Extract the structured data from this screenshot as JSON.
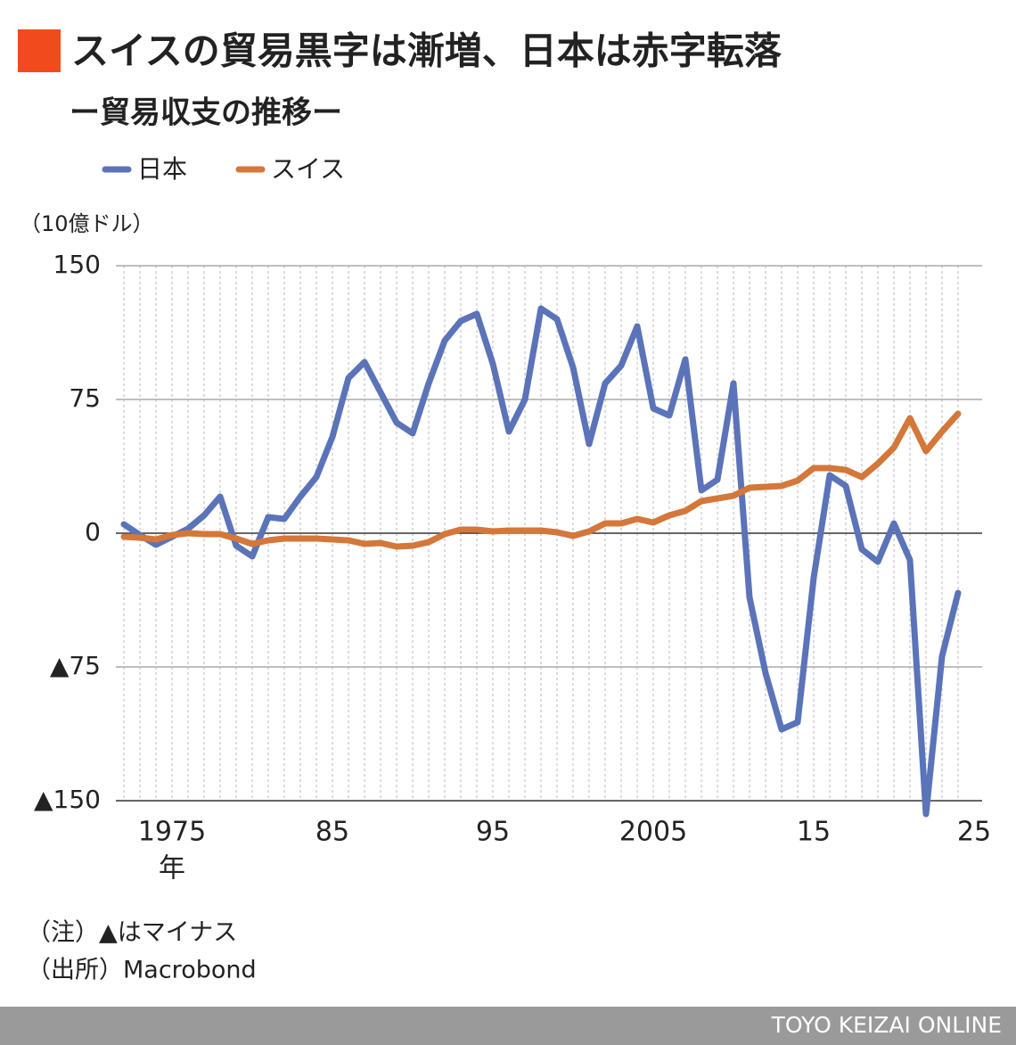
{
  "chart_data": {
    "type": "line",
    "title": "スイスの貿易黒字は漸増、日本は赤字転落",
    "subtitle": "ー貿易収支の推移ー",
    "y_unit": "（10億ドル）",
    "x_unit": "年",
    "notes": [
      "（注）▲はマイナス",
      "（出所）Macrobond"
    ],
    "footer": "TOYO KEIZAI ONLINE",
    "legend": "top-left",
    "grid": true,
    "x": [
      1972,
      1973,
      1974,
      1975,
      1976,
      1977,
      1978,
      1979,
      1980,
      1981,
      1982,
      1983,
      1984,
      1985,
      1986,
      1987,
      1988,
      1989,
      1990,
      1991,
      1992,
      1993,
      1994,
      1995,
      1996,
      1997,
      1998,
      1999,
      2000,
      2001,
      2002,
      2003,
      2004,
      2005,
      2006,
      2007,
      2008,
      2009,
      2010,
      2011,
      2012,
      2013,
      2014,
      2015,
      2016,
      2017,
      2018,
      2019,
      2020,
      2021,
      2022,
      2023,
      2024
    ],
    "series": [
      {
        "name": "日本",
        "color": "#5b73b8",
        "values": [
          5,
          -1,
          -6.5,
          -2,
          2.5,
          10,
          20.5,
          -7,
          -13,
          9,
          8,
          20.5,
          31.5,
          54,
          87,
          96,
          79,
          62,
          56,
          84,
          108,
          119,
          123,
          95,
          57,
          75,
          126,
          120,
          93,
          50,
          84,
          94,
          116,
          70,
          66,
          97.5,
          24,
          30,
          84,
          -36,
          -78.5,
          -110,
          -106,
          -25,
          32.5,
          26.5,
          -9,
          -16,
          5.5,
          -15,
          -157.5,
          -69,
          -33.5
        ]
      },
      {
        "name": "スイス",
        "color": "#d4773a",
        "values": [
          -2,
          -2.5,
          -3.5,
          -1,
          0,
          -0.5,
          -0.5,
          -3,
          -6,
          -4,
          -3,
          -3,
          -3,
          -3.5,
          -4,
          -6,
          -5.5,
          -7.5,
          -7,
          -5,
          -0.5,
          2,
          2,
          1,
          1.5,
          1.5,
          1.5,
          0.5,
          -1.5,
          1,
          5.5,
          5.5,
          8,
          6,
          10,
          12.5,
          18,
          19.5,
          21,
          25.5,
          26,
          26.5,
          29.5,
          36.5,
          36.5,
          35.5,
          31.5,
          39,
          48,
          64.5,
          46,
          57,
          67
        ]
      }
    ],
    "xlim": [
      1971.5,
      2025.5
    ],
    "xticks": [
      1975,
      {
        "value": 1985,
        "label": "85"
      },
      {
        "value": 1995,
        "label": "95"
      },
      2005,
      {
        "value": 2015,
        "label": "15"
      },
      {
        "value": 2025,
        "label": "25"
      }
    ],
    "ylim": [
      -150,
      150
    ],
    "yticks": [
      150,
      75,
      0,
      {
        "value": -75,
        "label": "▲75"
      },
      {
        "value": -150,
        "label": "▲150"
      }
    ]
  }
}
